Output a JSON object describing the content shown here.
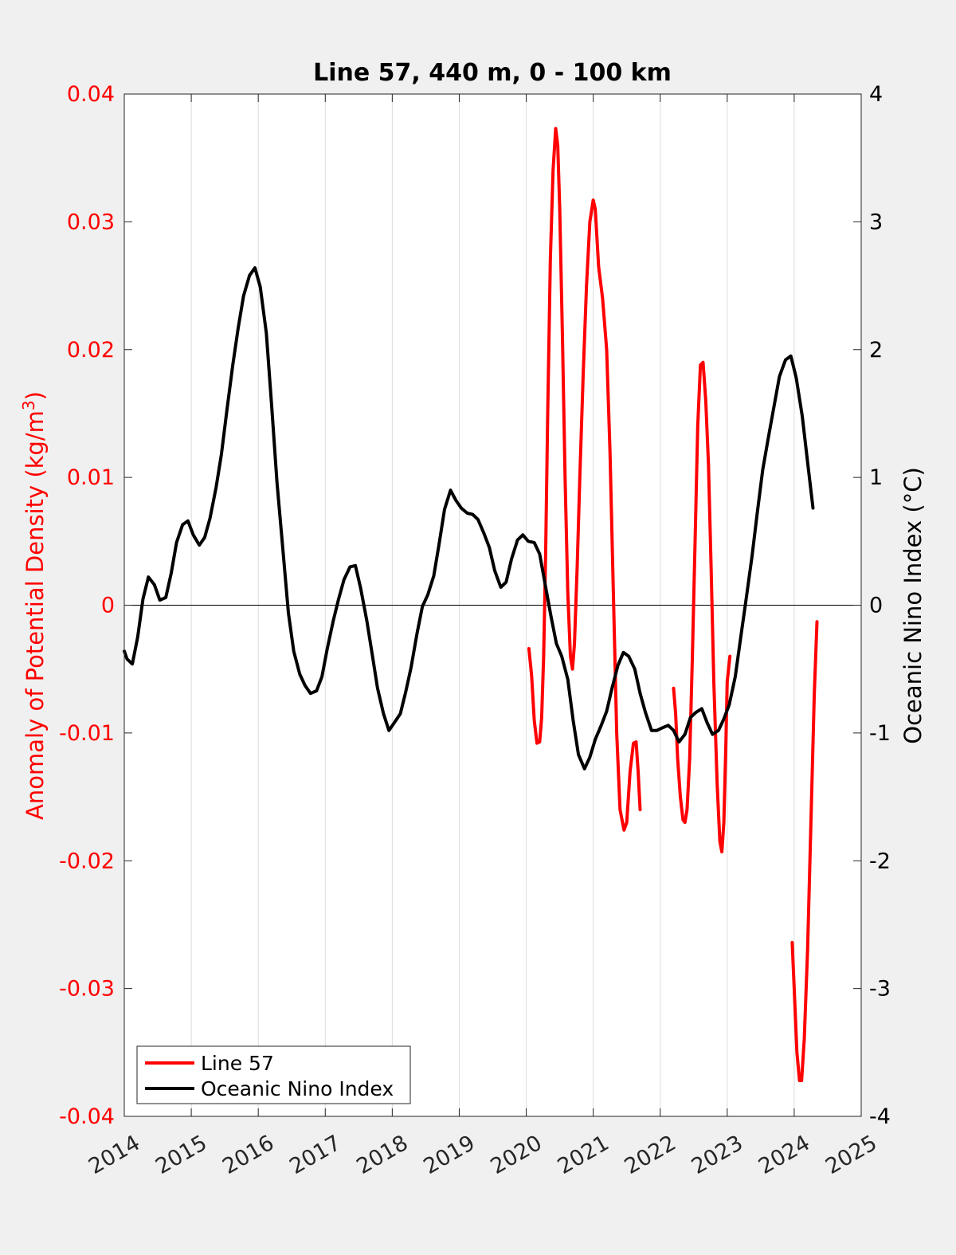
{
  "figure": {
    "background": "#f0f0f0"
  },
  "chart_data": {
    "type": "line",
    "title": "Line 57, 440 m, 0 - 100 km",
    "xlim": [
      2014,
      2025
    ],
    "xticks": [
      2014,
      2015,
      2016,
      2017,
      2018,
      2019,
      2020,
      2021,
      2022,
      2023,
      2024,
      2025
    ],
    "xtick_labels": [
      "2014",
      "2015",
      "2016",
      "2017",
      "2018",
      "2019",
      "2020",
      "2021",
      "2022",
      "2023",
      "2024",
      "2025"
    ],
    "left_axis": {
      "label": "Anomaly of Potential Density (kg/m",
      "label_sup": "3",
      "label_tail": ")",
      "ylim": [
        -0.04,
        0.04
      ],
      "ticks": [
        -0.04,
        -0.03,
        -0.02,
        -0.01,
        0,
        0.01,
        0.02,
        0.03,
        0.04
      ],
      "tick_labels": [
        "-0.04",
        "-0.03",
        "-0.02",
        "-0.01",
        "0",
        "0.01",
        "0.02",
        "0.03",
        "0.04"
      ],
      "color": "#ff0000"
    },
    "right_axis": {
      "label": "Oceanic Nino Index (°C)",
      "ylim": [
        -4,
        4
      ],
      "ticks": [
        -4,
        -3,
        -2,
        -1,
        0,
        1,
        2,
        3,
        4
      ],
      "tick_labels": [
        "-4",
        "-3",
        "-2",
        "-1",
        "0",
        "1",
        "2",
        "3",
        "4"
      ],
      "color": "#000000"
    },
    "grid": {
      "vertical": true,
      "horizontal": false,
      "zero_line": true
    },
    "legend": {
      "position": "bottom-left"
    },
    "series": [
      {
        "name": "Line 57",
        "axis": "left",
        "color": "#ff0000",
        "segments": [
          [
            [
              2020.04,
              -0.0034
            ],
            [
              2020.08,
              -0.0055
            ],
            [
              2020.12,
              -0.009
            ],
            [
              2020.16,
              -0.0108
            ],
            [
              2020.2,
              -0.0107
            ],
            [
              2020.23,
              -0.0088
            ],
            [
              2020.26,
              -0.004
            ],
            [
              2020.29,
              0.004
            ],
            [
              2020.32,
              0.015
            ],
            [
              2020.36,
              0.027
            ],
            [
              2020.4,
              0.034
            ],
            [
              2020.44,
              0.0373
            ],
            [
              2020.47,
              0.036
            ],
            [
              2020.5,
              0.031
            ],
            [
              2020.54,
              0.021
            ],
            [
              2020.58,
              0.01
            ],
            [
              2020.62,
              0.001
            ],
            [
              2020.66,
              -0.004
            ],
            [
              2020.69,
              -0.005
            ],
            [
              2020.72,
              -0.003
            ],
            [
              2020.76,
              0.003
            ],
            [
              2020.8,
              0.01
            ],
            [
              2020.85,
              0.018
            ],
            [
              2020.9,
              0.025
            ],
            [
              2020.95,
              0.03
            ],
            [
              2021.0,
              0.0317
            ],
            [
              2021.03,
              0.031
            ],
            [
              2021.08,
              0.0265
            ],
            [
              2021.14,
              0.024
            ],
            [
              2021.2,
              0.02
            ],
            [
              2021.25,
              0.012
            ],
            [
              2021.3,
              0.001
            ],
            [
              2021.35,
              -0.01
            ],
            [
              2021.4,
              -0.016
            ],
            [
              2021.46,
              -0.0176
            ],
            [
              2021.5,
              -0.017
            ],
            [
              2021.55,
              -0.013
            ],
            [
              2021.6,
              -0.0108
            ],
            [
              2021.64,
              -0.0107
            ],
            [
              2021.67,
              -0.013
            ],
            [
              2021.7,
              -0.016
            ]
          ],
          [
            [
              2022.2,
              -0.0065
            ],
            [
              2022.23,
              -0.0085
            ],
            [
              2022.26,
              -0.012
            ],
            [
              2022.3,
              -0.015
            ],
            [
              2022.34,
              -0.0168
            ],
            [
              2022.37,
              -0.017
            ],
            [
              2022.4,
              -0.016
            ],
            [
              2022.44,
              -0.012
            ],
            [
              2022.48,
              -0.004
            ],
            [
              2022.52,
              0.005
            ],
            [
              2022.56,
              0.014
            ],
            [
              2022.6,
              0.0188
            ],
            [
              2022.64,
              0.019
            ],
            [
              2022.68,
              0.016
            ],
            [
              2022.72,
              0.011
            ],
            [
              2022.76,
              0.003
            ],
            [
              2022.8,
              -0.006
            ],
            [
              2022.85,
              -0.014
            ],
            [
              2022.89,
              -0.0185
            ],
            [
              2022.92,
              -0.0193
            ],
            [
              2022.95,
              -0.017
            ],
            [
              2022.98,
              -0.011
            ],
            [
              2023.0,
              -0.006
            ],
            [
              2023.04,
              -0.004
            ]
          ],
          [
            [
              2023.97,
              -0.0264
            ],
            [
              2024.0,
              -0.03
            ],
            [
              2024.04,
              -0.035
            ],
            [
              2024.08,
              -0.0372
            ],
            [
              2024.11,
              -0.0372
            ],
            [
              2024.15,
              -0.034
            ],
            [
              2024.2,
              -0.027
            ],
            [
              2024.25,
              -0.017
            ],
            [
              2024.3,
              -0.007
            ],
            [
              2024.34,
              -0.0013
            ]
          ]
        ]
      },
      {
        "name": "Oceanic Nino Index",
        "axis": "right",
        "color": "#000000",
        "segments": [
          [
            [
              2014.0,
              -0.36
            ],
            [
              2014.04,
              -0.42
            ],
            [
              2014.12,
              -0.46
            ],
            [
              2014.2,
              -0.25
            ],
            [
              2014.28,
              0.05
            ],
            [
              2014.36,
              0.22
            ],
            [
              2014.45,
              0.16
            ],
            [
              2014.53,
              0.04
            ],
            [
              2014.62,
              0.06
            ],
            [
              2014.7,
              0.25
            ],
            [
              2014.78,
              0.49
            ],
            [
              2014.87,
              0.63
            ],
            [
              2014.95,
              0.66
            ],
            [
              2015.03,
              0.55
            ],
            [
              2015.12,
              0.47
            ],
            [
              2015.2,
              0.53
            ],
            [
              2015.28,
              0.68
            ],
            [
              2015.37,
              0.92
            ],
            [
              2015.45,
              1.18
            ],
            [
              2015.53,
              1.52
            ],
            [
              2015.62,
              1.88
            ],
            [
              2015.7,
              2.17
            ],
            [
              2015.78,
              2.42
            ],
            [
              2015.87,
              2.58
            ],
            [
              2015.95,
              2.64
            ],
            [
              2016.03,
              2.49
            ],
            [
              2016.12,
              2.13
            ],
            [
              2016.2,
              1.56
            ],
            [
              2016.28,
              0.96
            ],
            [
              2016.37,
              0.42
            ],
            [
              2016.45,
              -0.06
            ],
            [
              2016.53,
              -0.36
            ],
            [
              2016.62,
              -0.54
            ],
            [
              2016.7,
              -0.63
            ],
            [
              2016.78,
              -0.69
            ],
            [
              2016.87,
              -0.67
            ],
            [
              2016.95,
              -0.56
            ],
            [
              2017.03,
              -0.34
            ],
            [
              2017.12,
              -0.12
            ],
            [
              2017.2,
              0.05
            ],
            [
              2017.28,
              0.2
            ],
            [
              2017.37,
              0.3
            ],
            [
              2017.45,
              0.31
            ],
            [
              2017.53,
              0.13
            ],
            [
              2017.62,
              -0.12
            ],
            [
              2017.7,
              -0.38
            ],
            [
              2017.78,
              -0.65
            ],
            [
              2017.87,
              -0.85
            ],
            [
              2017.95,
              -0.98
            ],
            [
              2018.03,
              -0.92
            ],
            [
              2018.12,
              -0.85
            ],
            [
              2018.2,
              -0.68
            ],
            [
              2018.28,
              -0.49
            ],
            [
              2018.37,
              -0.22
            ],
            [
              2018.45,
              -0.01
            ],
            [
              2018.53,
              0.08
            ],
            [
              2018.62,
              0.23
            ],
            [
              2018.7,
              0.48
            ],
            [
              2018.78,
              0.75
            ],
            [
              2018.87,
              0.9
            ],
            [
              2018.95,
              0.82
            ],
            [
              2019.03,
              0.76
            ],
            [
              2019.12,
              0.72
            ],
            [
              2019.2,
              0.71
            ],
            [
              2019.28,
              0.67
            ],
            [
              2019.37,
              0.56
            ],
            [
              2019.45,
              0.45
            ],
            [
              2019.53,
              0.27
            ],
            [
              2019.62,
              0.14
            ],
            [
              2019.7,
              0.18
            ],
            [
              2019.78,
              0.36
            ],
            [
              2019.87,
              0.51
            ],
            [
              2019.95,
              0.55
            ],
            [
              2020.03,
              0.5
            ],
            [
              2020.12,
              0.49
            ],
            [
              2020.2,
              0.4
            ],
            [
              2020.28,
              0.17
            ],
            [
              2020.37,
              -0.09
            ],
            [
              2020.45,
              -0.3
            ],
            [
              2020.53,
              -0.4
            ],
            [
              2020.62,
              -0.58
            ],
            [
              2020.7,
              -0.9
            ],
            [
              2020.78,
              -1.17
            ],
            [
              2020.87,
              -1.28
            ],
            [
              2020.95,
              -1.19
            ],
            [
              2021.03,
              -1.05
            ],
            [
              2021.12,
              -0.94
            ],
            [
              2021.2,
              -0.83
            ],
            [
              2021.28,
              -0.65
            ],
            [
              2021.37,
              -0.47
            ],
            [
              2021.45,
              -0.37
            ],
            [
              2021.53,
              -0.4
            ],
            [
              2021.62,
              -0.5
            ],
            [
              2021.7,
              -0.69
            ],
            [
              2021.78,
              -0.84
            ],
            [
              2021.87,
              -0.98
            ],
            [
              2021.95,
              -0.98
            ],
            [
              2022.03,
              -0.96
            ],
            [
              2022.12,
              -0.94
            ],
            [
              2022.2,
              -0.98
            ],
            [
              2022.28,
              -1.07
            ],
            [
              2022.37,
              -1.01
            ],
            [
              2022.45,
              -0.88
            ],
            [
              2022.53,
              -0.84
            ],
            [
              2022.62,
              -0.81
            ],
            [
              2022.7,
              -0.92
            ],
            [
              2022.78,
              -1.01
            ],
            [
              2022.87,
              -0.98
            ],
            [
              2022.95,
              -0.89
            ],
            [
              2023.03,
              -0.78
            ],
            [
              2023.12,
              -0.56
            ],
            [
              2023.2,
              -0.26
            ],
            [
              2023.28,
              0.04
            ],
            [
              2023.37,
              0.38
            ],
            [
              2023.45,
              0.73
            ],
            [
              2023.53,
              1.06
            ],
            [
              2023.62,
              1.33
            ],
            [
              2023.7,
              1.56
            ],
            [
              2023.78,
              1.79
            ],
            [
              2023.87,
              1.92
            ],
            [
              2023.95,
              1.95
            ],
            [
              2024.03,
              1.78
            ],
            [
              2024.12,
              1.48
            ],
            [
              2024.2,
              1.12
            ],
            [
              2024.28,
              0.76
            ]
          ]
        ]
      }
    ]
  }
}
